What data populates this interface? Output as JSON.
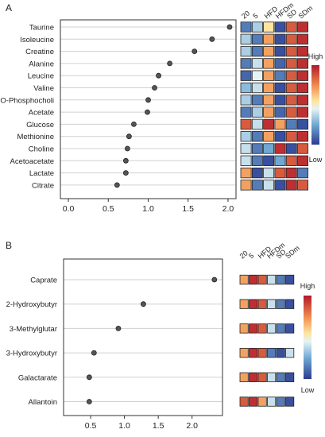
{
  "chart_data": [
    {
      "type": "scatter",
      "panel_label": "A",
      "categories": [
        "Taurine",
        "Isoleucine",
        "Creatine",
        "Alanine",
        "Leucine",
        "Valine",
        "O-Phosphocholi",
        "Acetate",
        "Glucose",
        "Methionine",
        "Choline",
        "Acetoacetate",
        "Lactate",
        "Citrate"
      ],
      "values": [
        2.02,
        1.8,
        1.58,
        1.27,
        1.13,
        1.08,
        1.0,
        0.99,
        0.82,
        0.76,
        0.74,
        0.72,
        0.72,
        0.61
      ],
      "xlim": [
        -0.1,
        2.1
      ],
      "xticks": [
        "0.0",
        "0.5",
        "1.0",
        "1.5",
        "2.0"
      ],
      "xtick_values": [
        0,
        0.5,
        1.0,
        1.5,
        2.0
      ],
      "grid": true,
      "heatmap": {
        "columns": [
          "20",
          "5",
          "HFD",
          "HFDm",
          "SD",
          "SDm"
        ],
        "colorbar_high": "High",
        "colorbar_low": "Low",
        "levels": [
          [
            0.15,
            0.35,
            0.55,
            0.05,
            0.85,
            0.95
          ],
          [
            0.35,
            0.15,
            0.7,
            0.05,
            0.85,
            0.95
          ],
          [
            0.35,
            0.15,
            0.7,
            0.05,
            0.85,
            0.95
          ],
          [
            0.15,
            0.4,
            0.7,
            0.1,
            0.85,
            0.95
          ],
          [
            0.1,
            0.45,
            0.7,
            0.15,
            0.85,
            0.95
          ],
          [
            0.3,
            0.4,
            0.7,
            0.05,
            0.85,
            0.95
          ],
          [
            0.35,
            0.15,
            0.7,
            0.05,
            0.85,
            0.95
          ],
          [
            0.15,
            0.35,
            0.7,
            0.1,
            0.85,
            0.95
          ],
          [
            0.85,
            0.4,
            0.95,
            0.7,
            0.15,
            0.05
          ],
          [
            0.35,
            0.15,
            0.7,
            0.05,
            0.85,
            0.95
          ],
          [
            0.4,
            0.15,
            0.25,
            0.95,
            0.05,
            0.85
          ],
          [
            0.4,
            0.15,
            0.05,
            0.25,
            0.85,
            0.95
          ],
          [
            0.7,
            0.05,
            0.4,
            0.85,
            0.95,
            0.15
          ],
          [
            0.7,
            0.15,
            0.4,
            0.05,
            0.95,
            0.85
          ]
        ]
      }
    },
    {
      "type": "scatter",
      "panel_label": "B",
      "categories": [
        "Caprate",
        "2-Hydroxybutyr",
        "3-Methylglutar",
        "3-Hydroxybutyr",
        "Galactarate",
        "Allantoin"
      ],
      "values": [
        2.33,
        1.28,
        0.91,
        0.55,
        0.48,
        0.48
      ],
      "xlim": [
        0.1,
        2.45
      ],
      "xticks": [
        "0.5",
        "1.0",
        "1.5",
        "2.0"
      ],
      "xtick_values": [
        0.5,
        1.0,
        1.5,
        2.0
      ],
      "grid": true,
      "heatmap": {
        "columns": [
          "20",
          "5",
          "HFD",
          "HFDm",
          "SD",
          "SDm"
        ],
        "colorbar_high": "High",
        "colorbar_low": "Low",
        "levels": [
          [
            0.7,
            0.95,
            0.85,
            0.4,
            0.15,
            0.05
          ],
          [
            0.7,
            0.95,
            0.85,
            0.4,
            0.15,
            0.05
          ],
          [
            0.7,
            0.95,
            0.85,
            0.4,
            0.15,
            0.05
          ],
          [
            0.7,
            0.95,
            0.85,
            0.15,
            0.05,
            0.4
          ],
          [
            0.7,
            0.95,
            0.85,
            0.4,
            0.15,
            0.05
          ],
          [
            0.85,
            0.95,
            0.7,
            0.4,
            0.15,
            0.05
          ]
        ]
      }
    }
  ]
}
